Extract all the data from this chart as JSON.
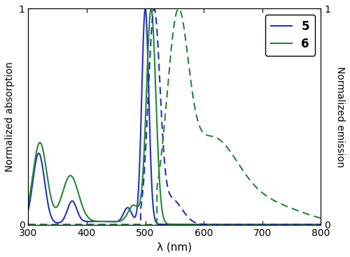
{
  "blue_color": "#2233bb",
  "green_color": "#228833",
  "xlim": [
    300,
    800
  ],
  "ylim": [
    0,
    1
  ],
  "xlabel": "λ (nm)",
  "ylabel_left": "Normalized absorption",
  "ylabel_right": "Normalized emission",
  "legend": [
    {
      "label": "5",
      "color": "#2233bb"
    },
    {
      "label": "6",
      "color": "#228833"
    }
  ],
  "xticks": [
    300,
    400,
    500,
    600,
    700,
    800
  ],
  "yticks": [
    0,
    1
  ],
  "figsize": [
    5.0,
    3.68
  ],
  "dpi": 100
}
